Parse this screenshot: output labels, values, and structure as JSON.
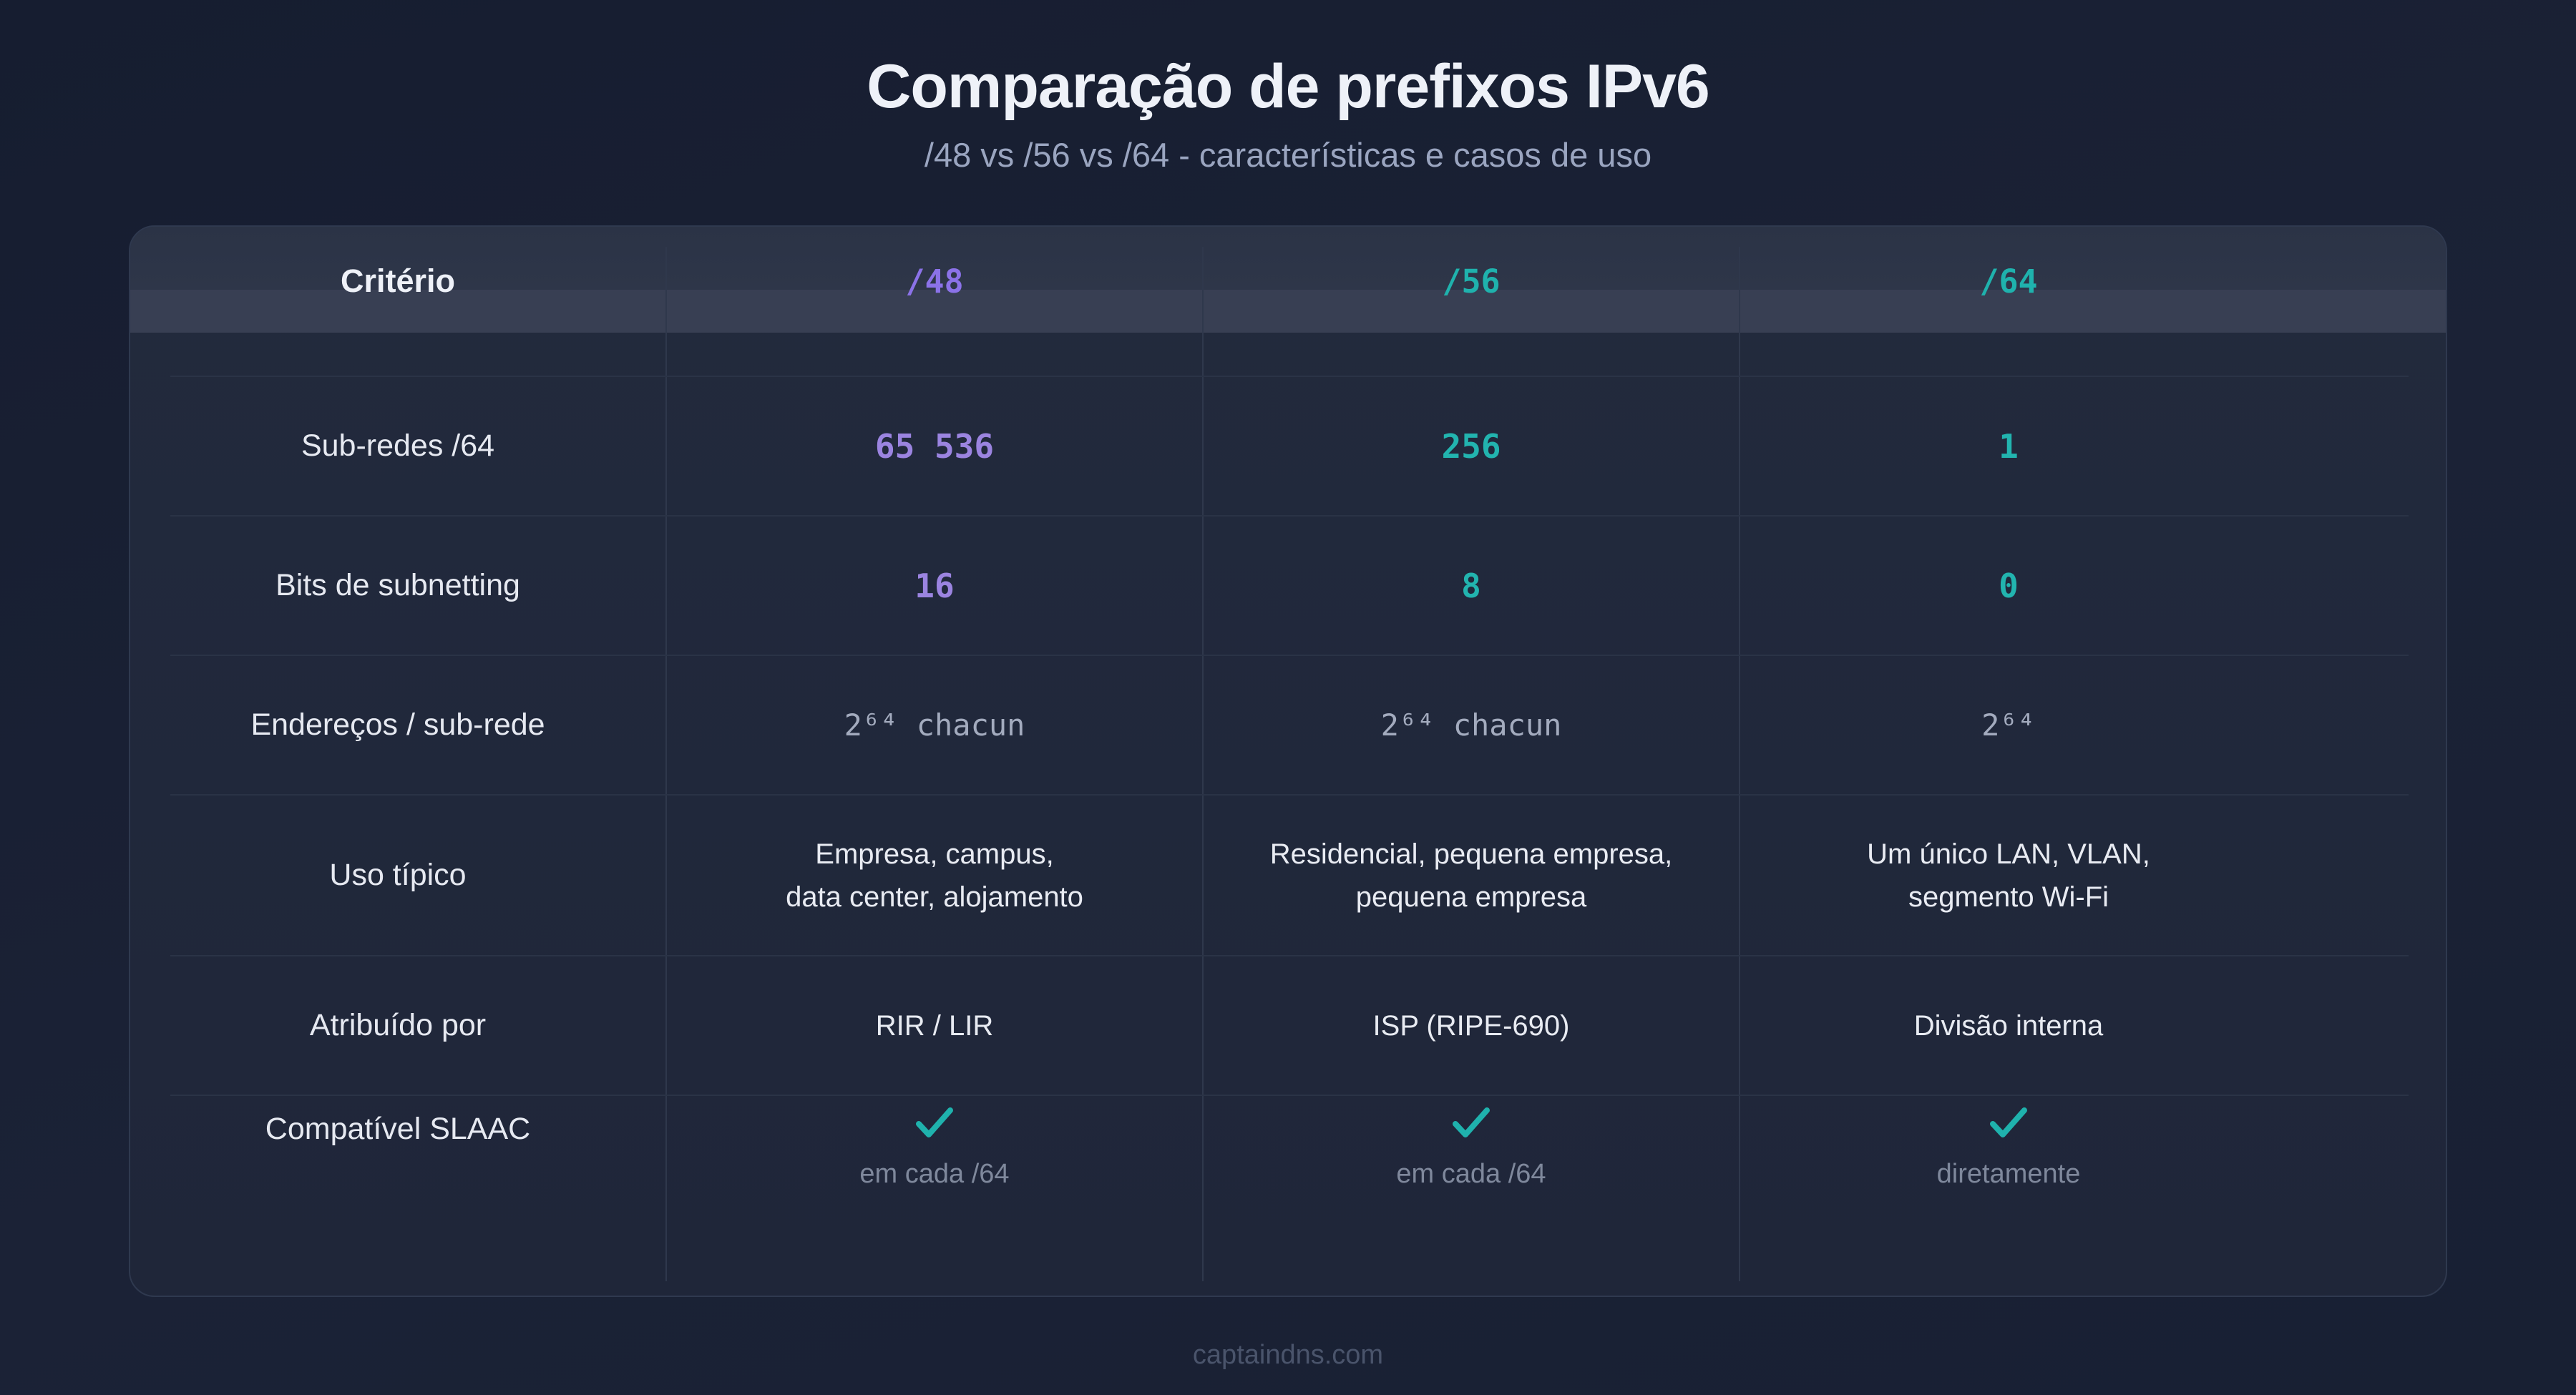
{
  "title": "Comparação de prefixos IPv6",
  "subtitle": "/48 vs /56 vs /64 - características e casos de uso",
  "colors": {
    "purple_accent": "#8b72e8",
    "teal_accent": "#1fb2ad",
    "check": "#1fb2ad"
  },
  "table": {
    "headers": [
      "Critério",
      "/48",
      "/56",
      "/64"
    ],
    "rows": [
      {
        "label": "Sub-redes /64",
        "values": [
          "65 536",
          "256",
          "1"
        ]
      },
      {
        "label": "Bits de subnetting",
        "values": [
          "16",
          "8",
          "0"
        ]
      },
      {
        "label": "Endereços / sub-rede",
        "values": [
          "2⁶⁴ chacun",
          "2⁶⁴ chacun",
          "2⁶⁴"
        ]
      },
      {
        "label": "Uso típico",
        "values": [
          [
            "Empresa, campus,",
            "data center, alojamento"
          ],
          [
            "Residencial, pequena empresa,",
            "pequena empresa"
          ],
          [
            "Um único LAN, VLAN,",
            "segmento Wi-Fi"
          ]
        ]
      },
      {
        "label": "Atribuído por",
        "values": [
          "RIR / LIR",
          "ISP (RIPE-690)",
          "Divisão interna"
        ]
      },
      {
        "label": "Compatível SLAAC",
        "icon": "checkmark-icon",
        "values": [
          "em cada /64",
          "em cada /64",
          "diretamente"
        ]
      }
    ]
  },
  "footer": "captaindns.com"
}
